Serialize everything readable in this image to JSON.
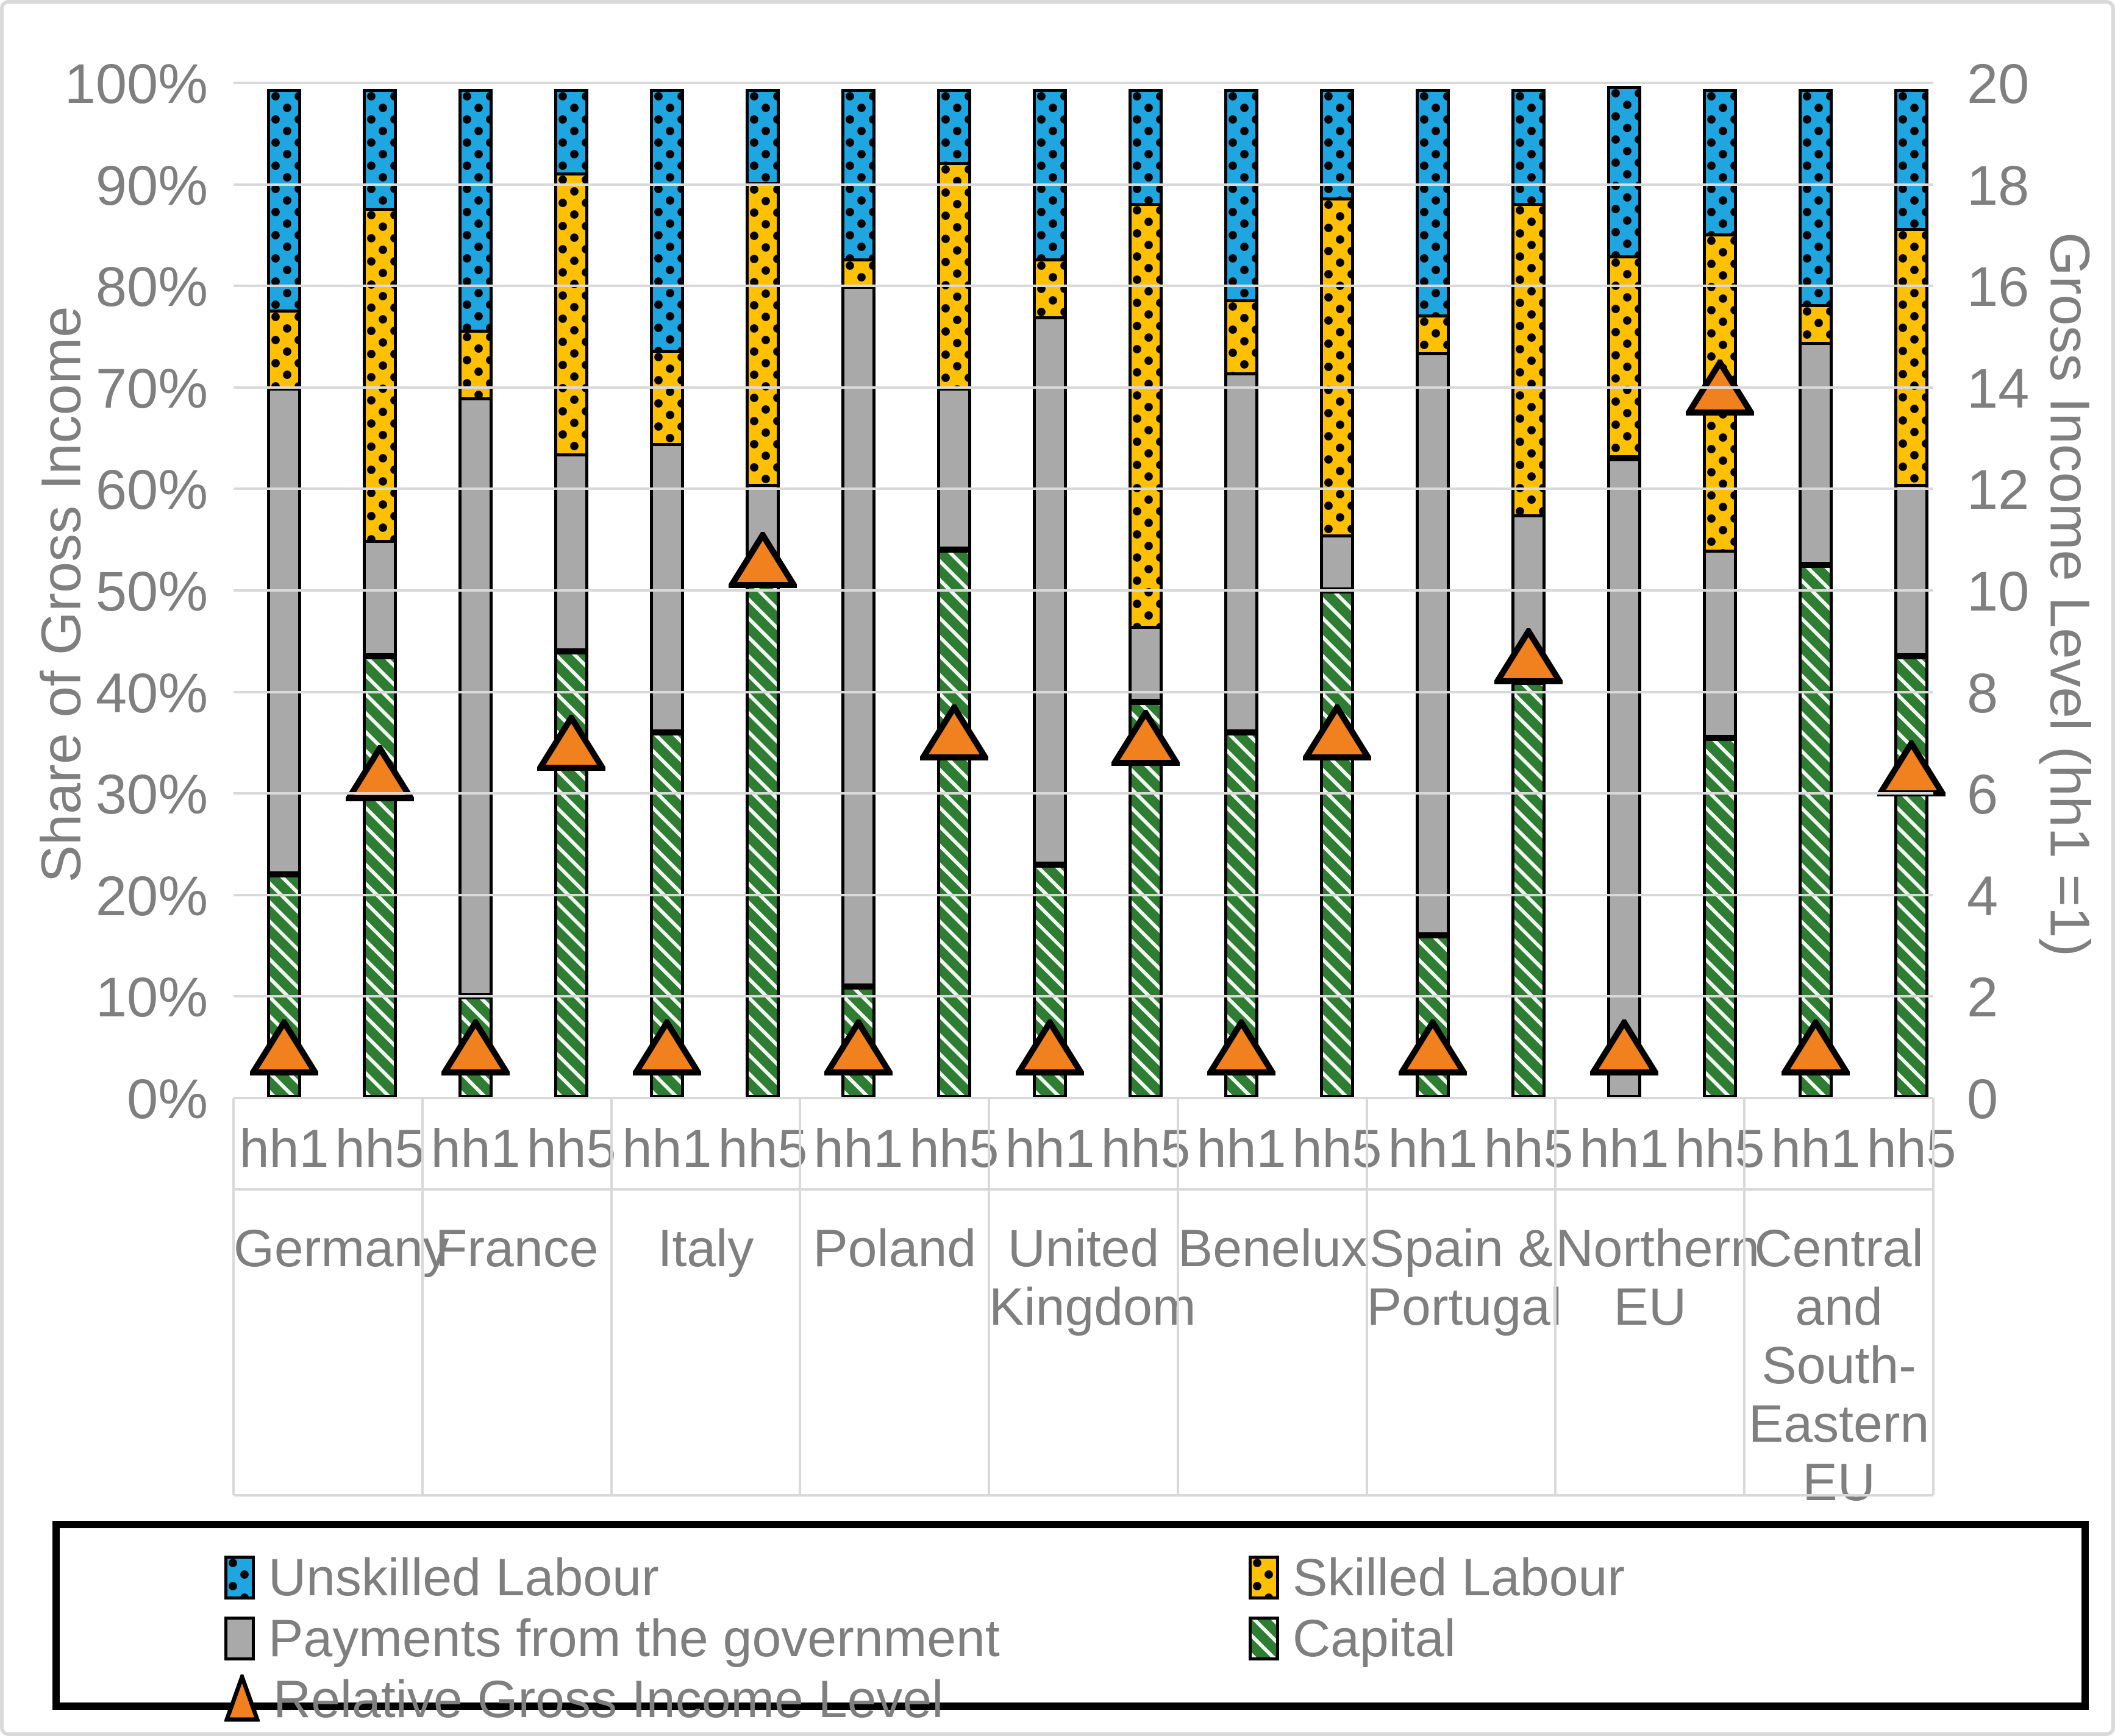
{
  "figure": {
    "left_axis": {
      "title": "Share of Gross Income",
      "ticks": [
        "100%",
        "90%",
        "80%",
        "70%",
        "60%",
        "50%",
        "40%",
        "30%",
        "20%",
        "10%",
        "0%"
      ]
    },
    "right_axis": {
      "title": "Gross Income Level (hh1 =1)",
      "ticks": [
        "20",
        "18",
        "16",
        "14",
        "12",
        "10",
        "8",
        "6",
        "4",
        "2",
        "0"
      ]
    },
    "legend": {
      "unskilled": "Unskilled Labour",
      "skilled": "Skilled Labour",
      "government": "Payments from the government",
      "capital": "Capital",
      "rgi": "Relative Gross Income Level"
    },
    "colors": {
      "unskilled_blue": "#1fa5e0",
      "skilled_yellow": "#ffc000",
      "government_gray": "#a9a9a9",
      "capital_green": "#2f7d32",
      "rgi_orange": "#f1801f",
      "gridline": "#d9d9d9",
      "axis_text": "#7f7f7f",
      "outline": "#000000"
    }
  },
  "chart_data": {
    "type": "bar",
    "stacked": true,
    "title": "",
    "xlabel": "",
    "ylabel_left": "Share of Gross Income",
    "ylabel_right": "Gross Income Level (hh1 =1)",
    "left_axis_range_pct": [
      0,
      100
    ],
    "right_axis_range": [
      0,
      20
    ],
    "grid": true,
    "legend_position": "bottom",
    "series_order_bottom_to_top": [
      "Capital",
      "Payments from the government",
      "Skilled Labour",
      "Unskilled Labour"
    ],
    "marker_series": "Relative Gross Income Level",
    "groups": [
      {
        "region": "Germany",
        "region_lines": [
          "Germany"
        ],
        "bars": [
          {
            "household": "hh1",
            "capital": 22,
            "government": 48,
            "skilled": 8,
            "unskilled": 22,
            "rgi": 1.0
          },
          {
            "household": "hh5",
            "capital": 43.5,
            "government": 11.5,
            "skilled": 33,
            "unskilled": 12,
            "rgi": 6.4
          }
        ]
      },
      {
        "region": "France",
        "region_lines": [
          "France"
        ],
        "bars": [
          {
            "household": "hh1",
            "capital": 10,
            "government": 59,
            "skilled": 7,
            "unskilled": 24,
            "rgi": 1.0
          },
          {
            "household": "hh5",
            "capital": 44,
            "government": 19.5,
            "skilled": 28,
            "unskilled": 8.5,
            "rgi": 7.0
          }
        ]
      },
      {
        "region": "Italy",
        "region_lines": [
          "Italy"
        ],
        "bars": [
          {
            "household": "hh1",
            "capital": 36,
            "government": 28.5,
            "skilled": 9.5,
            "unskilled": 26,
            "rgi": 1.0
          },
          {
            "household": "hh5",
            "capital": 51,
            "government": 9.5,
            "skilled": 30,
            "unskilled": 9.5,
            "rgi": 10.6
          }
        ]
      },
      {
        "region": "Poland",
        "region_lines": [
          "Poland"
        ],
        "bars": [
          {
            "household": "hh1",
            "capital": 11,
            "government": 69,
            "skilled": 3,
            "unskilled": 17,
            "rgi": 1.0
          },
          {
            "household": "hh5",
            "capital": 54,
            "government": 16,
            "skilled": 22.5,
            "unskilled": 7.5,
            "rgi": 7.2
          }
        ]
      },
      {
        "region": "United Kingdom",
        "region_lines": [
          "United",
          "Kingdom"
        ],
        "bars": [
          {
            "household": "hh1",
            "capital": 23,
            "government": 54,
            "skilled": 6,
            "unskilled": 17,
            "rgi": 1.0
          },
          {
            "household": "hh5",
            "capital": 39,
            "government": 7.5,
            "skilled": 42,
            "unskilled": 11.5,
            "rgi": 7.1
          }
        ]
      },
      {
        "region": "Benelux",
        "region_lines": [
          "Benelux"
        ],
        "bars": [
          {
            "household": "hh1",
            "capital": 36,
            "government": 35.5,
            "skilled": 7.5,
            "unskilled": 21,
            "rgi": 1.0
          },
          {
            "household": "hh5",
            "capital": 50,
            "government": 5.5,
            "skilled": 33.5,
            "unskilled": 11,
            "rgi": 7.2
          }
        ]
      },
      {
        "region": "Spain & Portugal",
        "region_lines": [
          "Spain &",
          "Portugal"
        ],
        "bars": [
          {
            "household": "hh1",
            "capital": 16,
            "government": 57.5,
            "skilled": 4,
            "unskilled": 22.5,
            "rgi": 1.0
          },
          {
            "household": "hh5",
            "capital": 41,
            "government": 16.5,
            "skilled": 31,
            "unskilled": 11.5,
            "rgi": 8.7
          }
        ]
      },
      {
        "region": "Northern EU",
        "region_lines": [
          "Northern",
          "EU"
        ],
        "bars": [
          {
            "household": "hh1",
            "capital": 0,
            "government": 63,
            "skilled": 20,
            "unskilled": 17,
            "rgi": 1.0
          },
          {
            "household": "hh5",
            "capital": 35.5,
            "government": 18.5,
            "skilled": 31.5,
            "unskilled": 14.5,
            "rgi": 14.0
          }
        ]
      },
      {
        "region": "Central and South-Eastern EU",
        "region_lines": [
          "Central",
          "and",
          "South-",
          "Eastern",
          "EU"
        ],
        "bars": [
          {
            "household": "hh1",
            "capital": 52.5,
            "government": 22,
            "skilled": 4,
            "unskilled": 21.5,
            "rgi": 1.0
          },
          {
            "household": "hh5",
            "capital": 43.5,
            "government": 17,
            "skilled": 25.5,
            "unskilled": 14,
            "rgi": 6.5
          }
        ]
      }
    ]
  }
}
